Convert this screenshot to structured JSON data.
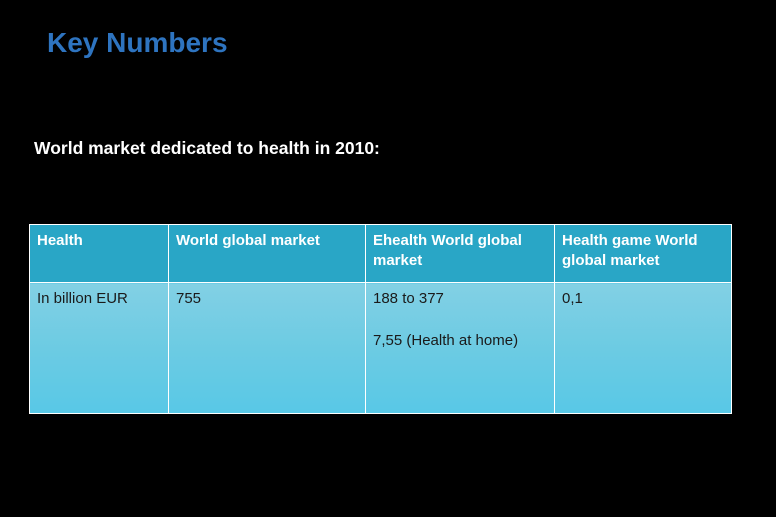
{
  "slide": {
    "title": "Key Numbers",
    "subtitle": "World market dedicated to health in 2010:",
    "title_color": "#2e74c0",
    "background": "#000000"
  },
  "table": {
    "header_color": "#29a6c6",
    "body_color": "#6ccbe3",
    "headers": [
      "Health",
      "World global market",
      "Ehealth World global market",
      "Health game World global market"
    ],
    "rows": [
      {
        "cells": [
          [
            "In billion EUR"
          ],
          [
            "755"
          ],
          [
            "188 to 377",
            "7,55 (Health at home)"
          ],
          [
            "0,1"
          ]
        ]
      }
    ]
  }
}
